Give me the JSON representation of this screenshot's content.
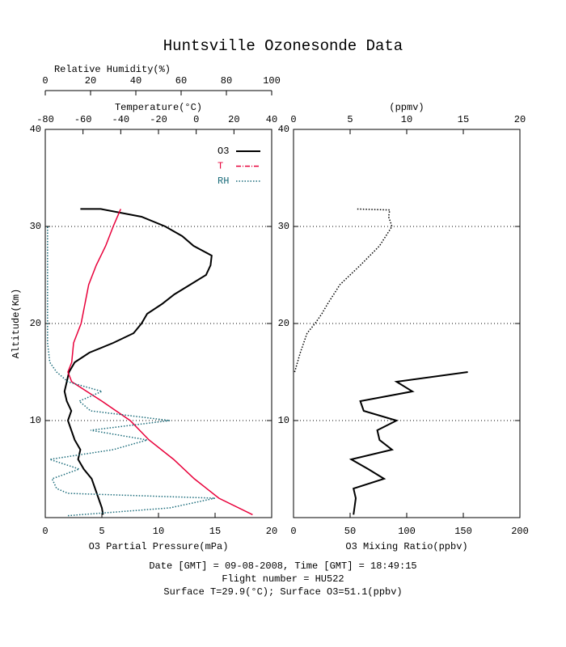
{
  "chart_data": [
    {
      "type": "line",
      "title": "Huntsville Ozonesonde Data",
      "xlabel": "O3 Partial Pressure(mPa)",
      "xlim": [
        0,
        20
      ],
      "xticks": [
        0,
        5,
        10,
        15,
        20
      ],
      "x2label": "Temperature(°C)",
      "x2lim": [
        -80,
        40
      ],
      "x2ticks": [
        -80,
        -60,
        -40,
        -20,
        0,
        20,
        40
      ],
      "x3label": "Relative Humidity(%)",
      "x3lim": [
        0,
        100
      ],
      "x3ticks": [
        0,
        20,
        40,
        60,
        80,
        100
      ],
      "ylabel": "Altitude(Km)",
      "ylim": [
        0,
        40
      ],
      "yticks": [
        10,
        20,
        30,
        40
      ],
      "grid": true,
      "legend": "upper right",
      "series": [
        {
          "name": "O3",
          "color": "#000000",
          "style": "solid",
          "axis": "x",
          "altitude": [
            0.3,
            1,
            2,
            3,
            4,
            5,
            6,
            7,
            8,
            9,
            10,
            11,
            12,
            13,
            14,
            15,
            16,
            17,
            18,
            19,
            20,
            21,
            22,
            23,
            24,
            25,
            26,
            27,
            28,
            29,
            30,
            31,
            31.8,
            31.8
          ],
          "values": [
            5.1,
            5.0,
            4.7,
            4.4,
            4.1,
            3.4,
            2.9,
            3.1,
            2.6,
            2.3,
            2.0,
            2.3,
            1.9,
            1.7,
            1.9,
            2.1,
            2.6,
            3.9,
            6.0,
            7.8,
            8.5,
            9.0,
            10.3,
            11.4,
            12.8,
            14.2,
            14.6,
            14.7,
            13.1,
            12.1,
            10.6,
            8.5,
            4.9,
            3.1
          ]
        },
        {
          "name": "T",
          "color": "#e8003a",
          "style": "dashdot",
          "axis": "x2",
          "altitude": [
            0.3,
            2,
            4,
            6,
            8,
            10,
            12,
            14,
            15,
            16,
            18,
            20,
            22,
            24,
            26,
            28,
            30,
            31.8
          ],
          "values": [
            29.9,
            12,
            -1,
            -12,
            -25,
            -35,
            -50,
            -66,
            -68,
            -66,
            -65,
            -61,
            -59,
            -57,
            -53,
            -48,
            -44,
            -40
          ]
        },
        {
          "name": "RH",
          "color": "#1a6b7a",
          "style": "dotted",
          "axis": "x3",
          "altitude": [
            0.2,
            1,
            2,
            2.5,
            3,
            4,
            5,
            6,
            7,
            8,
            9,
            10,
            11,
            12,
            13,
            14,
            15,
            16,
            18,
            25,
            30
          ],
          "values": [
            10,
            55,
            75,
            10,
            5,
            3,
            15,
            2,
            30,
            45,
            20,
            55,
            20,
            15,
            25,
            10,
            5,
            2,
            1,
            1,
            1
          ]
        }
      ]
    },
    {
      "type": "line",
      "xlabel": "O3 Mixing Ratio(ppbv)",
      "xlim": [
        0,
        200
      ],
      "xticks": [
        0,
        50,
        100,
        150,
        200
      ],
      "x2label": "(ppmv)",
      "x2lim": [
        0,
        20
      ],
      "x2ticks": [
        0,
        5,
        10,
        15,
        20
      ],
      "ylim": [
        0,
        40
      ],
      "yticks": [
        10,
        20,
        30,
        40
      ],
      "grid": true,
      "series": [
        {
          "color": "#000000",
          "style": "solid",
          "axis": "x",
          "altitude": [
            0.3,
            2,
            3,
            4,
            5,
            6,
            7,
            8,
            9,
            10,
            11,
            12,
            13,
            14,
            15
          ],
          "values": [
            53,
            55,
            53,
            80,
            66,
            51,
            87,
            76,
            74,
            91,
            62,
            59,
            105,
            91,
            154
          ]
        },
        {
          "color": "#000000",
          "style": "dotted",
          "axis": "x2",
          "altitude": [
            15,
            17,
            19,
            20,
            21,
            22,
            24,
            26,
            28,
            30,
            31,
            31.7,
            31.8
          ],
          "values": [
            0.1,
            0.6,
            1.2,
            1.9,
            2.5,
            3,
            4.1,
            5.9,
            7.6,
            8.7,
            8.4,
            8.5,
            5.5
          ]
        }
      ]
    }
  ],
  "footer": [
    "Date [GMT] = 09-08-2008, Time [GMT] = 18:49:15",
    "Flight number = HU522",
    "Surface T=29.9(°C); Surface O3=51.1(ppbv)"
  ]
}
